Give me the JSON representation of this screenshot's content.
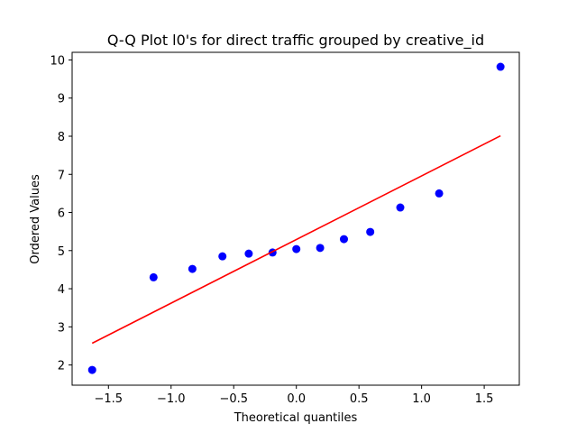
{
  "chart_data": {
    "type": "scatter",
    "title": "Q-Q Plot l0's for direct traffic grouped by creative_id",
    "xlabel": "Theoretical quantiles",
    "ylabel": "Ordered Values",
    "xlim": [
      -1.79,
      1.78
    ],
    "ylim": [
      1.47,
      10.2
    ],
    "xticks": [
      -1.5,
      -1.0,
      -0.5,
      0.0,
      0.5,
      1.0,
      1.5
    ],
    "xtick_labels": [
      "−1.5",
      "−1.0",
      "−0.5",
      "0.0",
      "0.5",
      "1.0",
      "1.5"
    ],
    "yticks": [
      2,
      3,
      4,
      5,
      6,
      7,
      8,
      9,
      10
    ],
    "ytick_labels": [
      "2",
      "3",
      "4",
      "5",
      "6",
      "7",
      "8",
      "9",
      "10"
    ],
    "grid": false,
    "series": [
      {
        "marker": "circle",
        "color": "#0000ff",
        "x": [
          -1.63,
          -1.14,
          -0.83,
          -0.59,
          -0.38,
          -0.19,
          0.0,
          0.19,
          0.38,
          0.59,
          0.83,
          1.14,
          1.63
        ],
        "y": [
          1.87,
          4.3,
          4.52,
          4.85,
          4.92,
          4.95,
          5.04,
          5.07,
          5.3,
          5.49,
          6.13,
          6.5,
          9.82
        ]
      },
      {
        "marker": "line",
        "color": "#ff0000",
        "x": [
          -1.63,
          1.63
        ],
        "y": [
          2.57,
          8.01
        ]
      }
    ]
  }
}
